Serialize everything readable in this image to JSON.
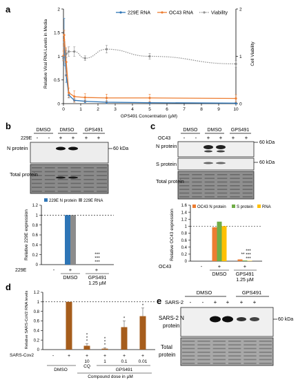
{
  "panels": {
    "a": {
      "letter": "a",
      "ylabel_left": "Relative Viral RNA Levels in Media",
      "ylabel_right": "Cell Viability",
      "xlabel": "GPS491 Concentration (µM)",
      "left_ticks": [
        "0",
        "0.5",
        "1",
        "1.5",
        "2"
      ],
      "right_ticks": [
        "0",
        "1",
        "2"
      ],
      "x_ticks": [
        "0",
        "1",
        "2",
        "3",
        "4",
        "5",
        "6",
        "7",
        "8",
        "9",
        "10"
      ]
    },
    "b": {
      "letter": "b",
      "blot": {
        "cond_dmso1": "DMSO",
        "cond_dmso2": "DMSO",
        "cond_gps": "GPS491",
        "row_label": "229E",
        "signs": [
          "-",
          "-",
          "+",
          "+",
          "+",
          "+"
        ],
        "n_protein": "N protein",
        "total_protein": "Total protein",
        "kda": "60 kDa"
      },
      "bar_ylabel": "Relative 229E expression",
      "bar_ticks": [
        "0",
        "0.2",
        "0.4",
        "0.6",
        "0.8",
        "1",
        "1.2"
      ],
      "virus_label": "229E",
      "signs": [
        "-",
        "+",
        "+"
      ],
      "groups": [
        "DMSO",
        "GPS491\n1.25 µM"
      ],
      "sig": "***"
    },
    "c": {
      "letter": "c",
      "blot": {
        "cond_dmso1": "DMSO",
        "cond_dmso2": "DMSO",
        "cond_gps": "GPS491",
        "row_label": "OC43",
        "signs": [
          "-",
          "-",
          "+",
          "+",
          "+",
          "+"
        ],
        "n_protein": "N protein",
        "s_protein": "S protein",
        "total_protein": "Total protein",
        "kda1": "60 kDa",
        "kda2": "60 kDa"
      },
      "bar_ylabel": "Relative OC43 expression",
      "bar_ticks": [
        "0",
        "0.2",
        "0.4",
        "0.6",
        "0.8",
        "1",
        "1.2",
        "1.4",
        "1.6"
      ],
      "virus_label": "OC43",
      "signs": [
        "-",
        "+",
        "+"
      ],
      "groups": [
        "DMSO",
        "GPS491\n1.25 µM"
      ],
      "sig1": "**",
      "sig2": "***",
      "sig3": "***"
    },
    "d": {
      "letter": "d",
      "ylabel": "Relative SARS-CoV2 RNA levels",
      "ticks": [
        "0",
        "0.2",
        "0.4",
        "0.6",
        "0.8",
        "1",
        "1.2"
      ],
      "virus_label": "SARS-Cov2",
      "signs": [
        "-",
        "+",
        "+",
        "+",
        "+",
        "+"
      ],
      "doses": [
        "10",
        "1",
        "0.1",
        "0.01"
      ],
      "sub_cq": "CQ",
      "group_dmso": "DMSO",
      "group_gps": "GPS491",
      "xlabel": "Compound dose in µM",
      "sigs": [
        "***",
        "***",
        "*",
        "*"
      ]
    },
    "e": {
      "letter": "e",
      "cond_dmso": "DMSO",
      "cond_gps": "GPS491",
      "row_label": "SARS-2",
      "signs": [
        "-",
        "-",
        "+",
        "+",
        "+",
        "+"
      ],
      "n_protein": "SARS-2 N protein",
      "total_protein": "Total protein",
      "kda": "60 kDa"
    }
  },
  "chart_data": [
    {
      "type": "line",
      "panel": "a",
      "legend_position": "top-right",
      "series": [
        {
          "name": "229E RNA",
          "color": "#2e75b6",
          "x": [
            0,
            0.04,
            0.16,
            0.31,
            0.63,
            1.25,
            2.5,
            5,
            10
          ],
          "y": [
            0.97,
            1.3,
            0.6,
            0.18,
            0.07,
            0.05,
            0.03,
            0.02,
            0.01
          ]
        },
        {
          "name": "OC43 RNA",
          "color": "#ed7d31",
          "x": [
            0,
            0.04,
            0.16,
            0.31,
            0.63,
            1.25,
            2.5,
            5,
            10
          ],
          "y": [
            1.01,
            1.45,
            0.88,
            0.23,
            0.15,
            0.13,
            0.12,
            0.12,
            0.11
          ]
        },
        {
          "name": "Viability",
          "color": "#8c8c8c",
          "x": [
            0,
            0.04,
            0.16,
            0.31,
            0.63,
            1.25,
            2.5,
            5,
            10
          ],
          "y": [
            0.95,
            1.18,
            1.05,
            1.1,
            1.1,
            0.96,
            1.15,
            1.0,
            0.84
          ]
        }
      ],
      "xlim": [
        0,
        10
      ],
      "ylim_left": [
        0,
        2
      ],
      "ylim_right": [
        0,
        2
      ]
    },
    {
      "type": "bar",
      "panel": "b",
      "legend_position": "top",
      "categories": [
        "-",
        "DMSO +",
        "GPS491 1.25 µM +"
      ],
      "series": [
        {
          "name": "229E N protein",
          "color": "#2e75b6",
          "values": [
            0,
            1.0,
            0.0
          ]
        },
        {
          "name": "229E RNA",
          "color": "#8c8c8c",
          "values": [
            0,
            1.0,
            0.0
          ]
        }
      ],
      "ylim": [
        0,
        1.2
      ]
    },
    {
      "type": "bar",
      "panel": "c",
      "legend_position": "top",
      "categories": [
        "-",
        "DMSO +",
        "GPS491 1.25 µM +"
      ],
      "series": [
        {
          "name": "OC43 N protein",
          "color": "#ed7d31",
          "values": [
            0,
            0.97,
            0.05
          ]
        },
        {
          "name": "S protein",
          "color": "#70ad47",
          "values": [
            0,
            1.13,
            0.02
          ]
        },
        {
          "name": "RNA",
          "color": "#ffc000",
          "values": [
            0,
            1.0,
            0.01
          ]
        }
      ],
      "ylim": [
        0,
        1.6
      ]
    },
    {
      "type": "bar",
      "panel": "d",
      "categories": [
        "-",
        "DMSO",
        "CQ 10",
        "GPS491 1",
        "GPS491 0.1",
        "GPS491 0.01"
      ],
      "values": [
        0,
        1.0,
        0.08,
        0.02,
        0.47,
        0.7
      ],
      "errors": [
        0,
        0,
        0.04,
        0.02,
        0.13,
        0.17
      ],
      "color": "#a65d1c",
      "ylim": [
        0,
        1.2
      ]
    }
  ]
}
